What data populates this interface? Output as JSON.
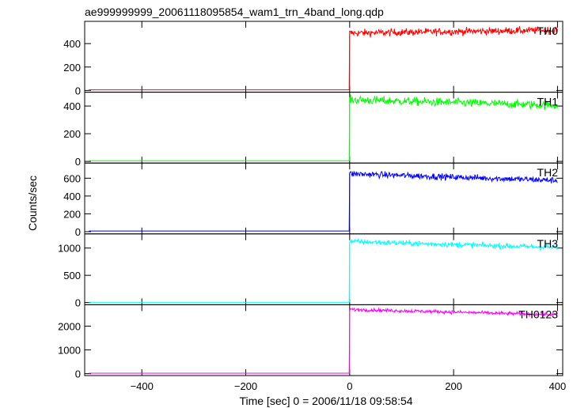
{
  "chart_data": {
    "type": "line",
    "title": "ae999999999_20061118095854_wam1_trn_4band_long.qdp",
    "xlabel": "Time [sec] 0 = 2006/11/18 09:58:54",
    "ylabel": "Counts/sec",
    "xlim": [
      -510,
      410
    ],
    "x_ticks": [
      -400,
      -200,
      0,
      200,
      400
    ],
    "x_tick_labels": [
      "−400",
      "−200",
      "0",
      "200",
      "400"
    ],
    "grid": false,
    "panels": [
      {
        "name": "TH0",
        "color": "#ff0000",
        "ylim": [
          -15,
          590
        ],
        "y_ticks": [
          0,
          200,
          400
        ],
        "step_time": 0,
        "pre_level": 5,
        "post_start": 490,
        "post_end": 515,
        "noise": 22
      },
      {
        "name": "TH1",
        "color": "#00ff00",
        "ylim": [
          -12,
          500
        ],
        "y_ticks": [
          0,
          200,
          400
        ],
        "step_time": 0,
        "pre_level": 5,
        "post_start": 445,
        "post_end": 405,
        "noise": 22
      },
      {
        "name": "TH2",
        "color": "#0000ff",
        "ylim": [
          -25,
          770
        ],
        "y_ticks": [
          0,
          200,
          400,
          600
        ],
        "step_time": 0,
        "pre_level": 8,
        "post_start": 650,
        "post_end": 575,
        "noise": 25
      },
      {
        "name": "TH3",
        "color": "#00ffff",
        "ylim": [
          -40,
          1260
        ],
        "y_ticks": [
          0,
          500,
          1000
        ],
        "step_time": 0,
        "pre_level": 5,
        "post_start": 1120,
        "post_end": 1010,
        "noise": 35
      },
      {
        "name": "TH0123",
        "color": "#ff00ff",
        "ylim": [
          -80,
          2900
        ],
        "y_ticks": [
          0,
          1000,
          2000
        ],
        "step_time": 0,
        "pre_level": 20,
        "post_start": 2700,
        "post_end": 2480,
        "noise": 50
      }
    ]
  }
}
